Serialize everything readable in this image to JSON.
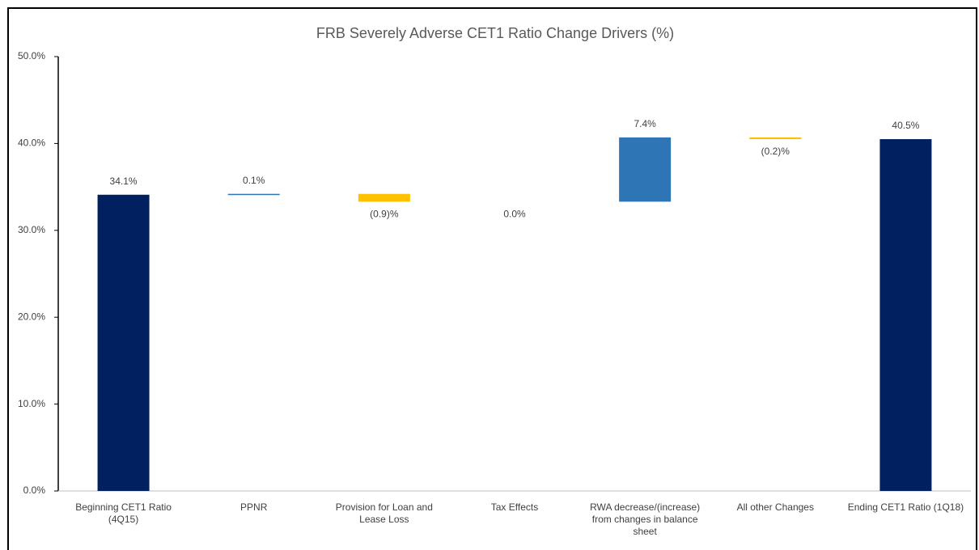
{
  "chart_data": {
    "type": "waterfall",
    "title": "FRB Severely Adverse CET1 Ratio Change Drivers (%)",
    "categories": [
      "Beginning CET1 Ratio (4Q15)",
      "PPNR",
      "Provision for Loan and Lease Loss",
      "Tax Effects",
      "RWA decrease/(increase) from changes in balance sheet",
      "All other Changes",
      "Ending CET1 Ratio (1Q18)"
    ],
    "values": [
      34.1,
      0.1,
      -0.9,
      0.0,
      7.4,
      -0.2,
      40.5
    ],
    "value_labels": [
      "34.1%",
      "0.1%",
      "(0.9)%",
      "0.0%",
      "7.4%",
      "(0.2)%",
      "40.5%"
    ],
    "kinds": [
      "total",
      "delta",
      "delta",
      "delta",
      "delta",
      "delta",
      "total"
    ],
    "colors": {
      "total": "#002060",
      "increase": "#2e75b6",
      "decrease": "#ffc000"
    },
    "ylim": [
      0,
      50
    ],
    "yticks": [
      {
        "value": 0,
        "label": "0.0%"
      },
      {
        "value": 10,
        "label": "10.0%"
      },
      {
        "value": 20,
        "label": "20.0%"
      },
      {
        "value": 30,
        "label": "30.0%"
      },
      {
        "value": 40,
        "label": "40.0%"
      },
      {
        "value": 50,
        "label": "50.0%"
      }
    ],
    "grid": false
  }
}
